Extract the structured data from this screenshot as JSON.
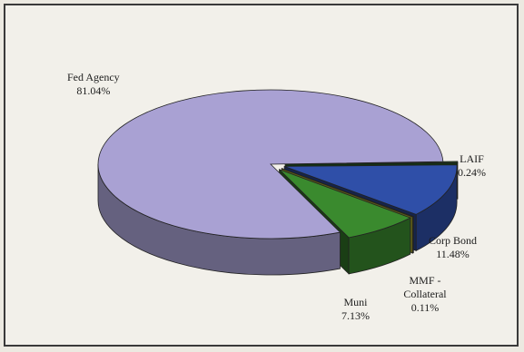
{
  "chart_data": {
    "type": "pie",
    "three_d": true,
    "title": "",
    "slices": [
      {
        "label": "Fed Agency",
        "value": 81.04,
        "display": "81.04%",
        "color": "#a9a1d3"
      },
      {
        "label": "LAIF",
        "value": 0.24,
        "display": "0.24%",
        "color": "#2d6a2a"
      },
      {
        "label": "Corp Bond",
        "value": 11.48,
        "display": "11.48%",
        "color": "#2f4fa8"
      },
      {
        "label": "MMF - Collateral",
        "value": 0.11,
        "display": "0.11%",
        "color": "#c8c830"
      },
      {
        "label": "Muni",
        "value": 7.13,
        "display": "7.13%",
        "color": "#3a8a2e"
      }
    ]
  }
}
